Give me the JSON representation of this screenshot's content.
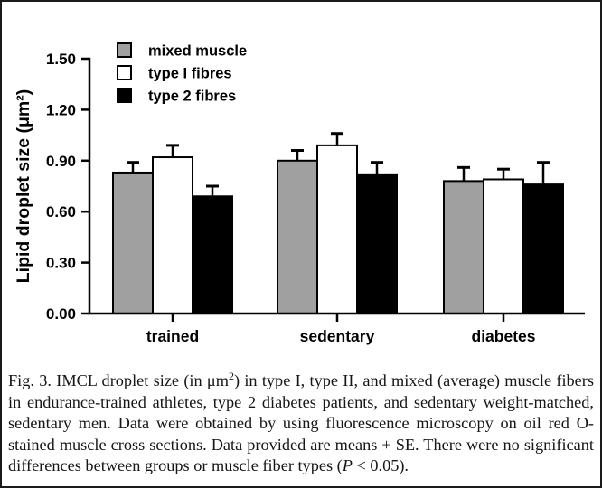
{
  "figure": {
    "background": "#ffffff",
    "border_color": "#1a1a1a",
    "bar_outline_color": "#000000",
    "axis_color": "#000000"
  },
  "chart_data": {
    "type": "bar",
    "title": "",
    "xlabel": "",
    "ylabel": "Lipid droplet size (μm²)",
    "categories": [
      "trained",
      "sedentary",
      "diabetes"
    ],
    "series": [
      {
        "name": "mixed muscle",
        "color": "#a0a0a0",
        "values": [
          0.83,
          0.9,
          0.78
        ],
        "errors_se": [
          0.06,
          0.06,
          0.08
        ]
      },
      {
        "name": "type I fibres",
        "color": "#ffffff",
        "values": [
          0.92,
          0.99,
          0.79
        ],
        "errors_se": [
          0.07,
          0.07,
          0.06
        ]
      },
      {
        "name": "type 2 fibres",
        "color": "#000000",
        "values": [
          0.69,
          0.82,
          0.76
        ],
        "errors_se": [
          0.06,
          0.07,
          0.13
        ]
      }
    ],
    "ylim": [
      0,
      1.5
    ],
    "yticks": [
      0.0,
      0.3,
      0.6,
      0.9,
      1.2,
      1.5
    ],
    "ytick_labels": [
      "0.00",
      "0.30",
      "0.60",
      "0.90",
      "1.20",
      "1.50"
    ],
    "grid": false,
    "legend_position": "top-left-inside",
    "error_bars": "means + SE, upward caps only"
  },
  "caption": {
    "segments": [
      {
        "text": "Fig. 3. IMCL droplet size (in μm"
      },
      {
        "text": "2",
        "sup": true
      },
      {
        "text": ") in type I, type II, and mixed (average) muscle fibers in endurance-trained athletes, type 2 diabetes patients, and sedentary weight-matched, sedentary men. Data were obtained by using fluorescence microscopy on oil red O-stained muscle cross sections. Data provided are means + SE. There were no significant differences between groups or muscle fiber types ("
      },
      {
        "text": "P",
        "italic": true
      },
      {
        "text": " < 0.05)."
      }
    ]
  }
}
